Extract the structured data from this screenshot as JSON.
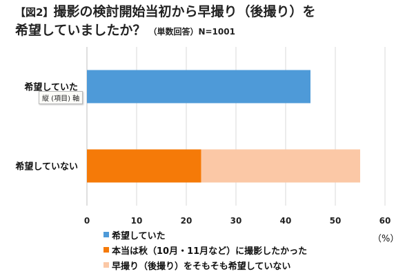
{
  "title": {
    "prefix": "【図2】",
    "line1": "撮影の検討開始当初から早撮り（後撮り）を",
    "line2": "希望していましたか？",
    "subtitle": "（単数回答）N=1001"
  },
  "tooltip": "縦 (項目) 軸",
  "unit_label": "（%）",
  "chart_data": {
    "type": "bar",
    "orientation": "horizontal",
    "stacked": true,
    "categories": [
      "希望していた",
      "希望していない"
    ],
    "series": [
      {
        "name": "希望していた",
        "color": "#4E9AD8",
        "values": [
          45.0,
          0
        ]
      },
      {
        "name": "本当は秋（10月・11月など）に撮影したかった",
        "color": "#F57A08",
        "values": [
          0,
          23.0
        ]
      },
      {
        "name": "早撮り（後撮り）をそもそも希望していない",
        "color": "#FBC8A6",
        "values": [
          0,
          32.0
        ]
      }
    ],
    "xlim": [
      0,
      60
    ],
    "xticks": [
      "0",
      "10",
      "20",
      "30",
      "40",
      "50",
      "60"
    ],
    "grid": true,
    "legend_position": "bottom"
  }
}
